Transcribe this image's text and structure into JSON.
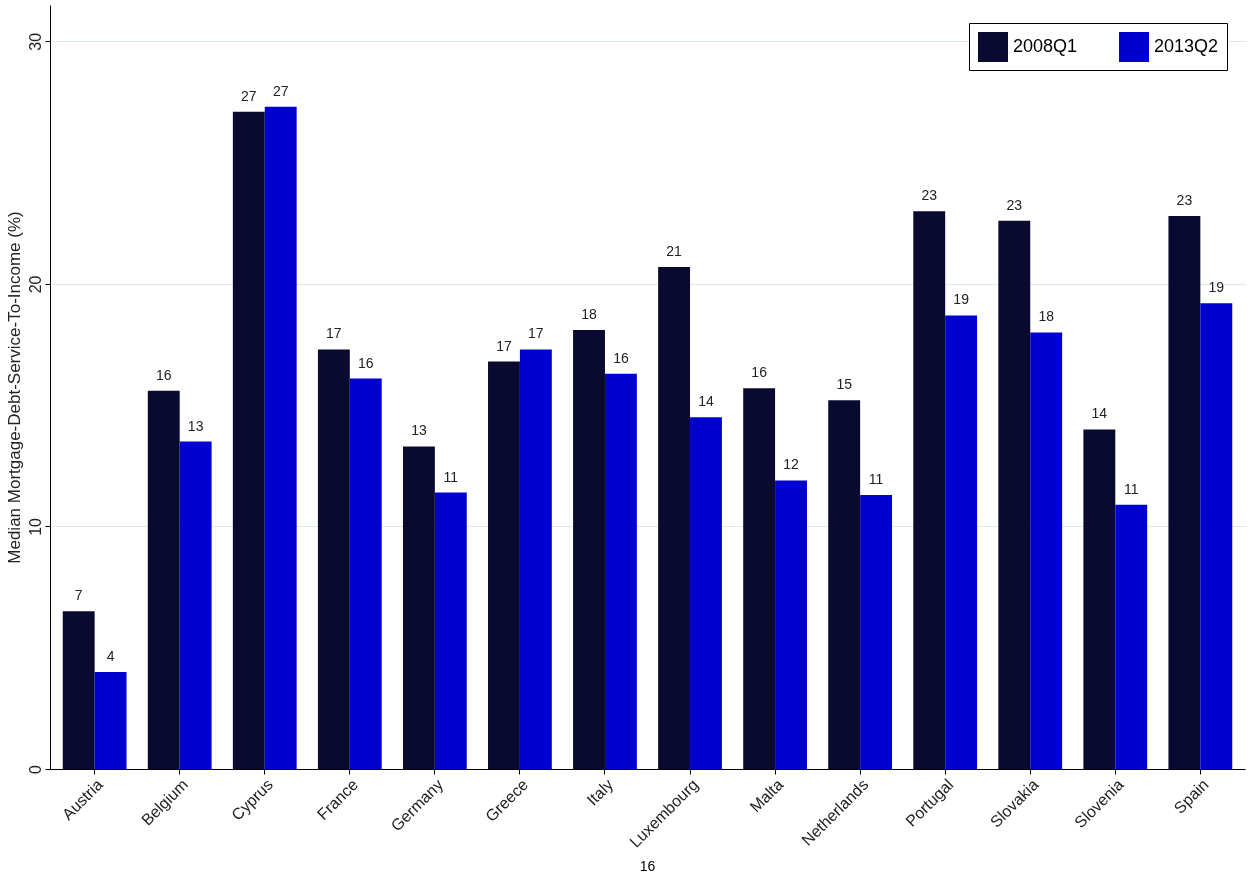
{
  "chart_data": {
    "type": "bar",
    "ylabel": "Median Mortgage-Debt-Service-To-Income (%)",
    "categories": [
      "Austria",
      "Belgium",
      "Cyprus",
      "France",
      "Germany",
      "Greece",
      "Italy",
      "Luxembourg",
      "Malta",
      "Netherlands",
      "Portugal",
      "Slovakia",
      "Slovenia",
      "Spain"
    ],
    "series": [
      {
        "name": "2008Q1",
        "color": "#0a0a30",
        "values": [
          6.5,
          15.6,
          27.1,
          17.3,
          13.3,
          16.8,
          18.1,
          20.7,
          15.7,
          15.2,
          23.0,
          22.6,
          14.0,
          22.8
        ],
        "value_labels": [
          "7",
          "16",
          "27",
          "17",
          "13",
          "17",
          "18",
          "21",
          "16",
          "15",
          "23",
          "23",
          "14",
          "23"
        ]
      },
      {
        "name": "2013Q2",
        "color": "#0000d0",
        "values": [
          4.0,
          13.5,
          27.3,
          16.1,
          11.4,
          17.3,
          16.3,
          14.5,
          11.9,
          11.3,
          18.7,
          18.0,
          10.9,
          19.2
        ],
        "value_labels": [
          "4",
          "13",
          "27",
          "16",
          "11",
          "17",
          "16",
          "14",
          "12",
          "11",
          "19",
          "18",
          "11",
          "19"
        ]
      }
    ],
    "ylim": [
      0,
      31.5
    ],
    "yticks": [
      0,
      10,
      20,
      30
    ],
    "grid": "y",
    "legend": "top right",
    "annotations": [
      "16"
    ]
  }
}
